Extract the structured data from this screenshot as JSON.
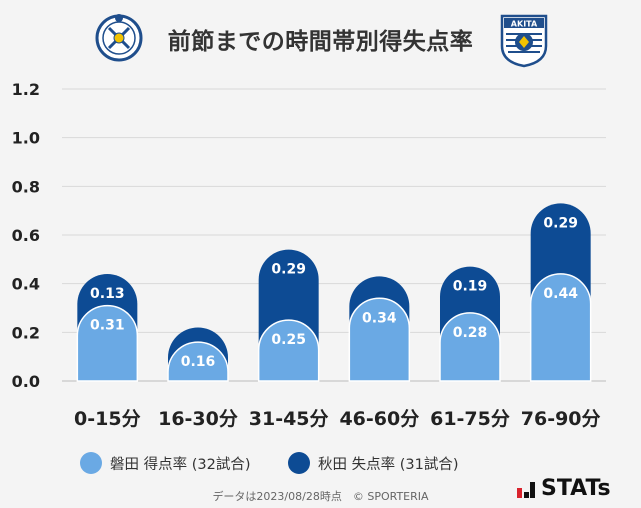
{
  "header": {
    "title": "前節までの時間帯別得失点率",
    "left_logo_icon": "jubilo-iwata-crest-icon",
    "right_logo_icon": "akita-blaublitz-crest-icon",
    "right_logo_text": "AKITA"
  },
  "chart_data": {
    "type": "bar",
    "stacked": true,
    "categories": [
      "0-15分",
      "16-30分",
      "31-45分",
      "46-60分",
      "61-75分",
      "76-90分"
    ],
    "series": [
      {
        "name": "磐田 得点率 (32試合)",
        "color": "#6aa9e4",
        "values": [
          0.31,
          0.16,
          0.25,
          0.34,
          0.28,
          0.44
        ]
      },
      {
        "name": "秋田 失点率 (31試合)",
        "color": "#0d4b94",
        "values": [
          0.13,
          0.06,
          0.29,
          0.09,
          0.19,
          0.29
        ]
      }
    ],
    "data_labels": [
      [
        "0.31",
        "0.16",
        "0.25",
        "0.34",
        "0.28",
        "0.44"
      ],
      [
        "0.13",
        "",
        "0.29",
        "",
        "0.19",
        "0.29"
      ]
    ],
    "ylim": [
      0,
      1.2
    ],
    "yticks": [
      "0.0",
      "0.2",
      "0.4",
      "0.6",
      "0.8",
      "1.0",
      "1.2"
    ],
    "grid": true,
    "legend_position": "bottom"
  },
  "footer": {
    "note": "データは2023/08/28時点　© SPORTERIA",
    "brand": "STATs",
    "brand_icon": "stats-logo-icon"
  },
  "colors": {
    "series1": "#6aa9e4",
    "series2": "#0d4b94",
    "grid": "#d9d9d9",
    "background": "#f4f4f4"
  }
}
